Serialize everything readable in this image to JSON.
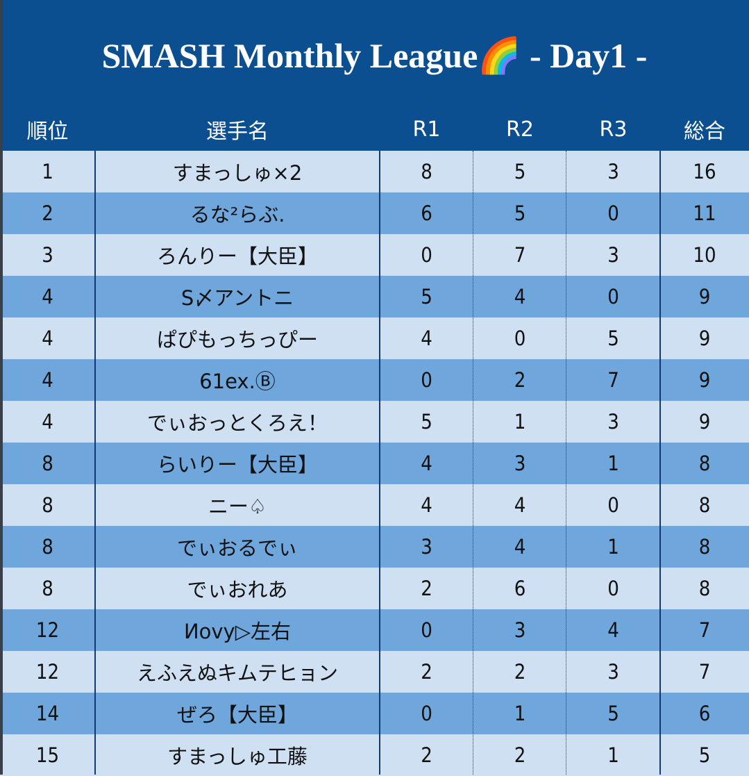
{
  "header": {
    "title": "SMASH Monthly League🌈 - Day1 -"
  },
  "table": {
    "columns": [
      "順位",
      "選手名",
      "R1",
      "R2",
      "R3",
      "総合"
    ],
    "rows": [
      [
        1,
        "すまっしゅ×2",
        8,
        5,
        3,
        16
      ],
      [
        2,
        "るな²らぶ.",
        6,
        5,
        0,
        11
      ],
      [
        3,
        "ろんりー【大臣】",
        0,
        7,
        3,
        10
      ],
      [
        4,
        "S〆アントニ",
        5,
        4,
        0,
        9
      ],
      [
        4,
        "ぱぴもっちっぴー",
        4,
        0,
        5,
        9
      ],
      [
        4,
        "61ex.Ⓑ",
        0,
        2,
        7,
        9
      ],
      [
        4,
        "でぃおっとくろえ！",
        5,
        1,
        3,
        9
      ],
      [
        8,
        "らいりー【大臣】",
        4,
        3,
        1,
        8
      ],
      [
        8,
        "ニー♤",
        4,
        4,
        0,
        8
      ],
      [
        8,
        "でぃおるでぃ",
        3,
        4,
        1,
        8
      ],
      [
        8,
        "でぃおれあ",
        2,
        6,
        0,
        8
      ],
      [
        12,
        "Иovy▷左右",
        0,
        3,
        4,
        7
      ],
      [
        12,
        "えふえぬキムテヒョン",
        2,
        2,
        3,
        7
      ],
      [
        14,
        "ぜろ【大臣】",
        0,
        1,
        5,
        6
      ],
      [
        15,
        "すまっしゅ工藤",
        2,
        2,
        1,
        5
      ]
    ]
  }
}
